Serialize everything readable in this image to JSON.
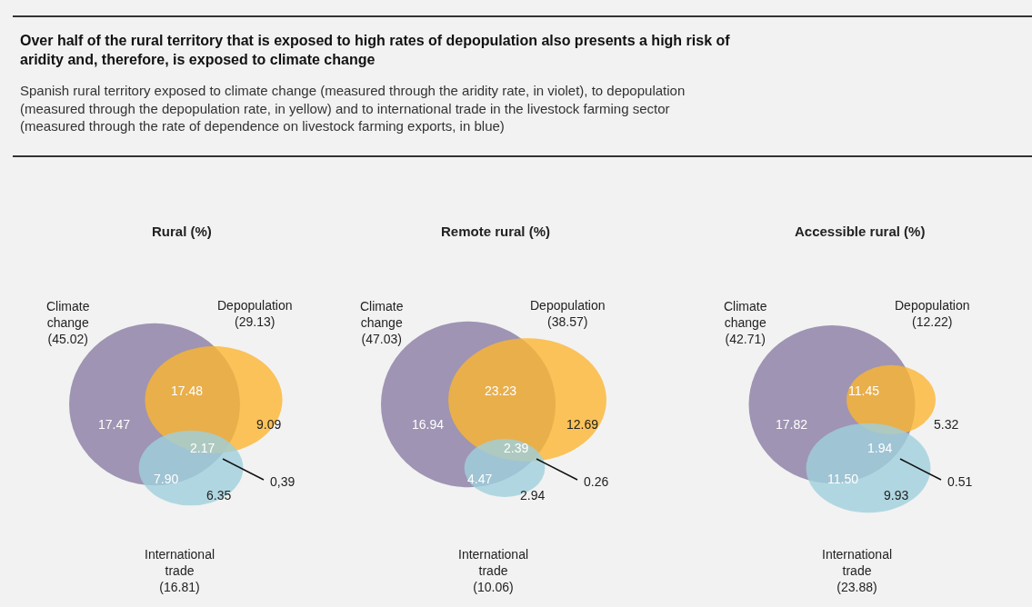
{
  "chart_data": [
    {
      "type": "other",
      "title": "Over half of the rural territory that is exposed to high rates of depopulation also presents a high risk of aridity and, therefore, is exposed to climate change",
      "subtitle": "Spanish rural territory exposed to climate change (measured through the aridity rate, in violet), to depopulation (measured through the depopulation rate, in yellow) and to international trade in the livestock farming sector (measured through the rate of dependence on livestock farming exports, in blue)"
    },
    {
      "type": "other",
      "title": "Rural (%)",
      "categories": [
        "Climate change",
        "Depopulation",
        "International trade"
      ],
      "values": [
        45.02,
        29.13,
        16.81
      ],
      "value_labels": [
        "(45.02)",
        "(29.13)",
        "(16.81)"
      ],
      "colors": [
        "#8a7ca3",
        "#fbb531",
        "#9fd0dc"
      ],
      "annotations": [
        "17.47",
        "17.48",
        "9.09",
        "2.17",
        "7.90",
        "6.35",
        "0,39"
      ]
    },
    {
      "type": "other",
      "title": "Remote rural (%)",
      "categories": [
        "Climate change",
        "Depopulation",
        "International trade"
      ],
      "values": [
        47.03,
        38.57,
        10.06
      ],
      "value_labels": [
        "(47.03)",
        "(38.57)",
        "(10.06)"
      ],
      "colors": [
        "#8a7ca3",
        "#fbb531",
        "#9fd0dc"
      ],
      "annotations": [
        "16.94",
        "23.23",
        "12.69",
        "2.39",
        "4.47",
        "2.94",
        "0.26"
      ]
    },
    {
      "type": "other",
      "title": "Accessible rural (%)",
      "categories": [
        "Climate change",
        "Depopulation",
        "International trade"
      ],
      "values": [
        42.71,
        12.22,
        23.88
      ],
      "value_labels": [
        "(42.71)",
        "(12.22)",
        "(23.88)"
      ],
      "colors": [
        "#8a7ca3",
        "#fbb531",
        "#9fd0dc"
      ],
      "annotations": [
        "17.82",
        "11.45",
        "5.32",
        "1.94",
        "11.50",
        "9.93",
        "0.51"
      ]
    }
  ]
}
